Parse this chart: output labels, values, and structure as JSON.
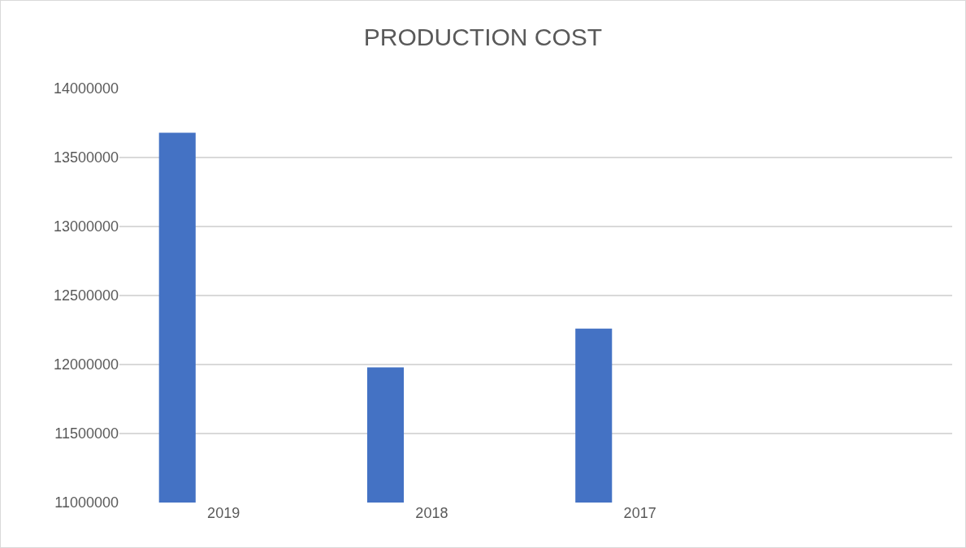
{
  "chart_data": {
    "type": "bar",
    "title": "PRODUCTION COST",
    "categories": [
      "2019",
      "2018",
      "2017",
      null
    ],
    "values": [
      13680000,
      11980000,
      12260000,
      null
    ],
    "color": "#4472c4",
    "ylim": [
      11000000,
      14000000
    ],
    "yticks": [
      11000000,
      11500000,
      12000000,
      12500000,
      13000000,
      13500000,
      14000000
    ],
    "grid": "y",
    "legend": false
  }
}
